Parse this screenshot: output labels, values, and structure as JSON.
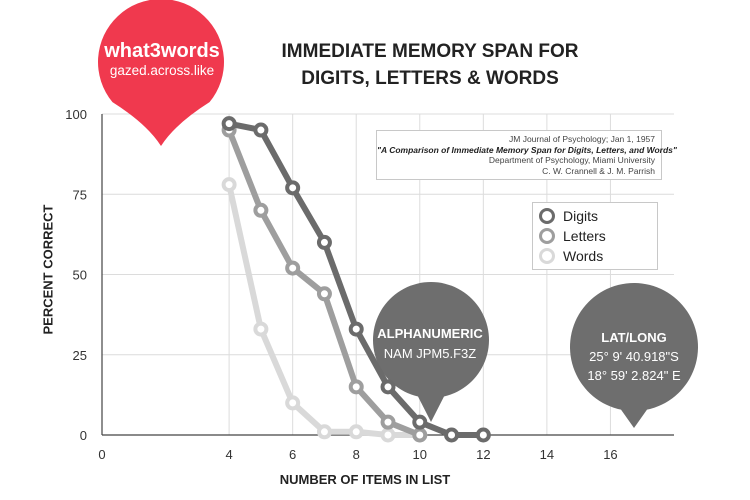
{
  "chart_data": {
    "type": "line",
    "title_line1": "IMMEDIATE MEMORY SPAN FOR",
    "title_line2": "DIGITS, LETTERS & WORDS",
    "xlabel": "NUMBER OF ITEMS IN LIST",
    "ylabel": "PERCENT CORRECT",
    "xlim": [
      0,
      18
    ],
    "ylim": [
      0,
      100
    ],
    "xticks": [
      0,
      4,
      6,
      8,
      10,
      12,
      14,
      16
    ],
    "yticks": [
      0,
      25,
      50,
      75,
      100
    ],
    "grid": true,
    "legend_position": "right",
    "series": [
      {
        "name": "Digits",
        "color": "#6b6b6b",
        "points": [
          [
            4,
            97
          ],
          [
            5,
            95
          ],
          [
            6,
            77
          ],
          [
            7,
            60
          ],
          [
            8,
            33
          ],
          [
            9,
            15
          ],
          [
            10,
            4
          ],
          [
            11,
            0
          ],
          [
            12,
            0
          ]
        ]
      },
      {
        "name": "Letters",
        "color": "#9e9e9e",
        "points": [
          [
            4,
            95
          ],
          [
            5,
            70
          ],
          [
            6,
            52
          ],
          [
            7,
            44
          ],
          [
            8,
            15
          ],
          [
            9,
            4
          ],
          [
            10,
            0
          ]
        ]
      },
      {
        "name": "Words",
        "color": "#d9d9d9",
        "points": [
          [
            4,
            78
          ],
          [
            5,
            33
          ],
          [
            6,
            10
          ],
          [
            7,
            1
          ],
          [
            8,
            1
          ],
          [
            9,
            0
          ],
          [
            10,
            0
          ]
        ]
      }
    ]
  },
  "source": {
    "line1": "JM Journal of Psychology; Jan 1, 1957",
    "line2": "\"A Comparison of Immediate Memory Span for Digits, Letters, and Words\"",
    "line3": "Department of Psychology, Miami University",
    "line4": "C. W. Crannell & J. M. Parrish"
  },
  "pin": {
    "title": "what3words",
    "address": "gazed.across.like",
    "color": "#f0394e"
  },
  "bubbles": {
    "alphanumeric": {
      "title": "ALPHANUMERIC",
      "value": "NAM JPM5.F3Z",
      "color": "#6e6e6e"
    },
    "latlong": {
      "title": "LAT/LONG",
      "line1": "25° 9' 40.918\"S",
      "line2": "18° 59' 2.824\" E",
      "color": "#6e6e6e"
    }
  }
}
